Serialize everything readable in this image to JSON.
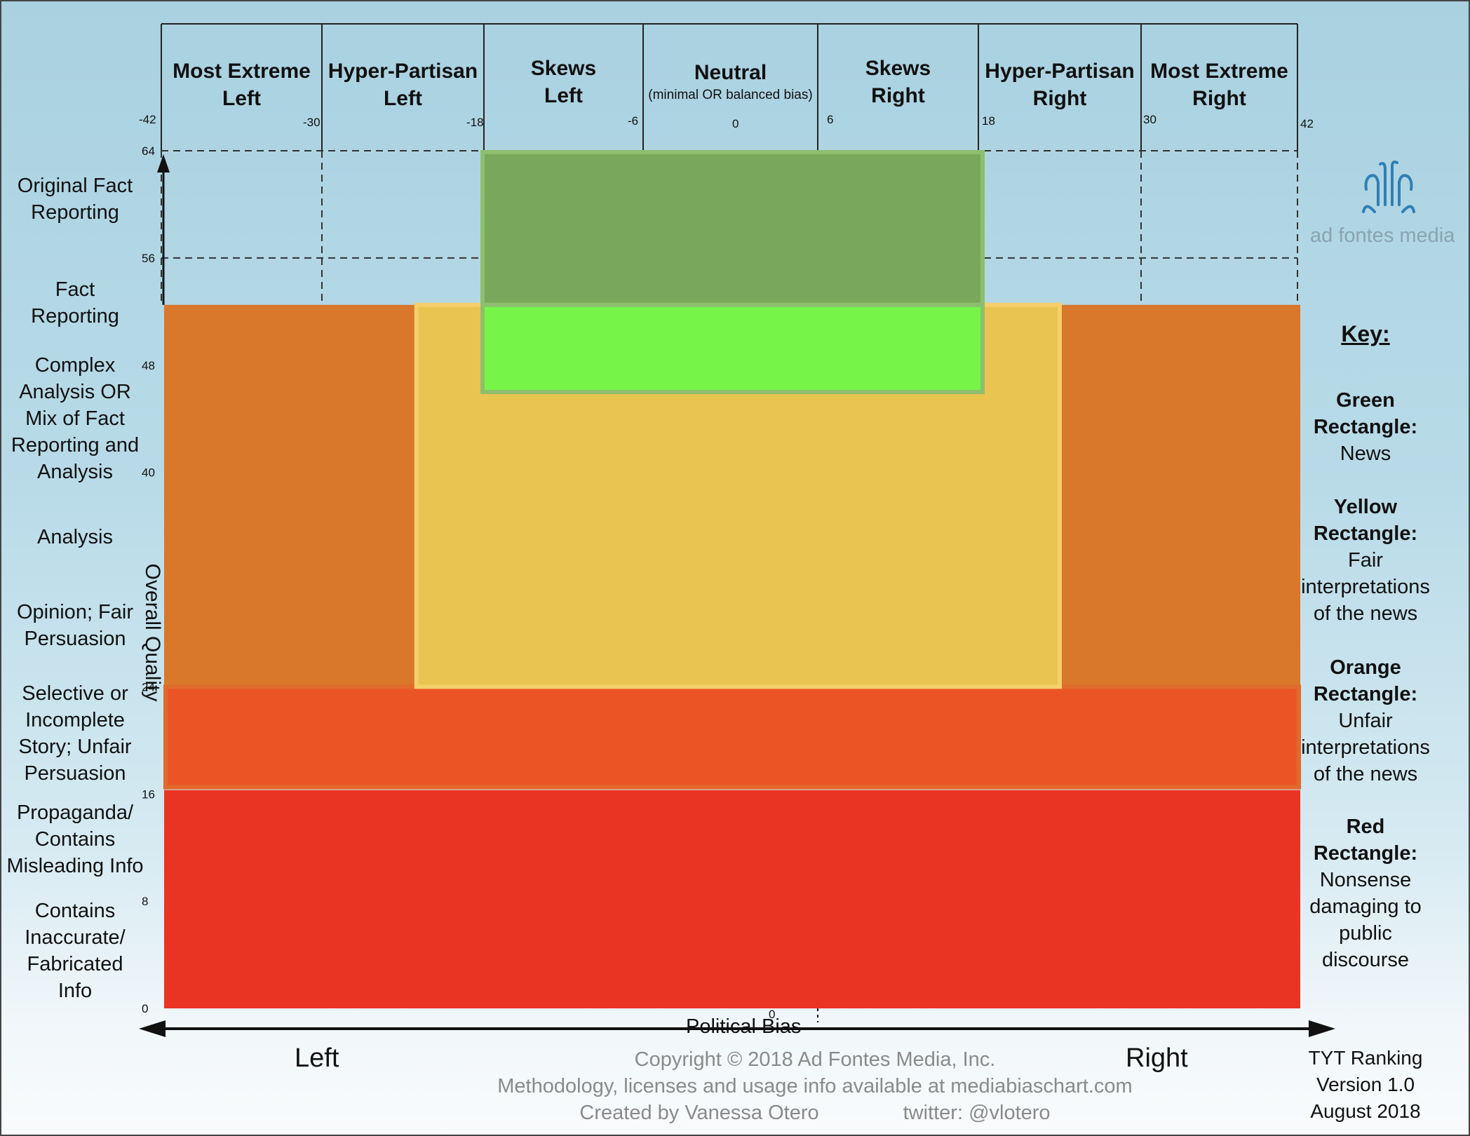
{
  "chart_data": {
    "type": "area",
    "title": "",
    "xlabel": "Political Bias",
    "ylabel": "Overall Quality",
    "xlim": [
      -42,
      42
    ],
    "ylim": [
      0,
      64
    ],
    "x_ticks": [
      -42,
      -30,
      -18,
      -6,
      0,
      6,
      18,
      30,
      42
    ],
    "y_ticks": [
      0,
      8,
      16,
      24,
      40,
      48,
      56,
      64
    ],
    "grid": "dashed",
    "bias_categories": [
      {
        "label": "Most Extreme\nLeft",
        "x_start": -42,
        "x_end": -30
      },
      {
        "label": "Hyper-Partisan\nLeft",
        "x_start": -30,
        "x_end": -18
      },
      {
        "label": "Skews\nLeft",
        "x_start": -18,
        "x_end": -6
      },
      {
        "label": "Neutral",
        "sublabel": "(minimal OR balanced bias)",
        "x_start": -6,
        "x_end": 6
      },
      {
        "label": "Skews\nRight",
        "x_start": 6,
        "x_end": 18
      },
      {
        "label": "Hyper-Partisan\nRight",
        "x_start": 18,
        "x_end": 30
      },
      {
        "label": "Most Extreme\nRight",
        "x_start": 30,
        "x_end": 42
      }
    ],
    "quality_categories": [
      {
        "label": "Original Fact\nReporting",
        "y": 60.5
      },
      {
        "label": "Fact\nReporting",
        "y": 54.5
      },
      {
        "label": "Complex\nAnalysis OR\nMix of Fact\nReporting and\nAnalysis",
        "y": 45
      },
      {
        "label": "Analysis",
        "y": 36
      },
      {
        "label": "Opinion; Fair\nPersuasion",
        "y": 29.5
      },
      {
        "label": "Selective or\nIncomplete\nStory; Unfair\nPersuasion",
        "y": 20
      },
      {
        "label": "Propaganda/\nContains\nMisleading Info",
        "y": 11.5
      },
      {
        "label": "Contains\nInaccurate/\nFabricated\nInfo",
        "y": 3.5
      }
    ],
    "rectangles": [
      {
        "name": "Red Rectangle",
        "x": [
          -42,
          42
        ],
        "y": [
          0,
          16.5
        ],
        "color": "#e93424"
      },
      {
        "name": "Orange Rectangle",
        "x": [
          -42,
          42
        ],
        "y": [
          16.5,
          52.5
        ],
        "color": "#d9772b"
      },
      {
        "name": "Red-Orange band",
        "x": [
          -42,
          42
        ],
        "y": [
          16.5,
          24
        ],
        "color": "#eb5526"
      },
      {
        "name": "Yellow Rectangle",
        "x": [
          -23,
          24
        ],
        "y": [
          24,
          52.5
        ],
        "color": "#e9c450"
      },
      {
        "name": "Green Rectangle",
        "x": [
          -18,
          18
        ],
        "y": [
          46,
          64
        ],
        "color": "#79a85c",
        "lower_color": "#76f548"
      }
    ],
    "x_end_labels": {
      "left": "Left",
      "right": "Right"
    }
  },
  "key": {
    "title": "Key:",
    "entries": [
      {
        "name": "Green\nRectangle:",
        "desc": "News"
      },
      {
        "name": "Yellow\nRectangle:",
        "desc": "Fair\ninterpretations\nof the news"
      },
      {
        "name": "Orange\nRectangle:",
        "desc": "Unfair\ninterpretations\nof the news"
      },
      {
        "name": "Red\nRectangle:",
        "desc": "Nonsense\ndamaging to\npublic\ndiscourse"
      }
    ]
  },
  "branding": {
    "logo_text": "ad fontes media",
    "logo_icon": "fountain-icon"
  },
  "footer": {
    "copyright": "Copyright © 2018 Ad Fontes Media, Inc.",
    "methodology": "Methodology, licenses and usage info available at mediabiaschart.com",
    "created_by": "Created by Vanessa Otero",
    "twitter": "twitter: @vlotero",
    "version": "TYT Ranking\nVersion 1.0\nAugust 2018"
  },
  "colors": {
    "green": "#79a85c",
    "bright_green": "#76f548",
    "yellow": "#e9c450",
    "orange": "#d9772b",
    "red_orange": "#eb5526",
    "red": "#e93424"
  }
}
